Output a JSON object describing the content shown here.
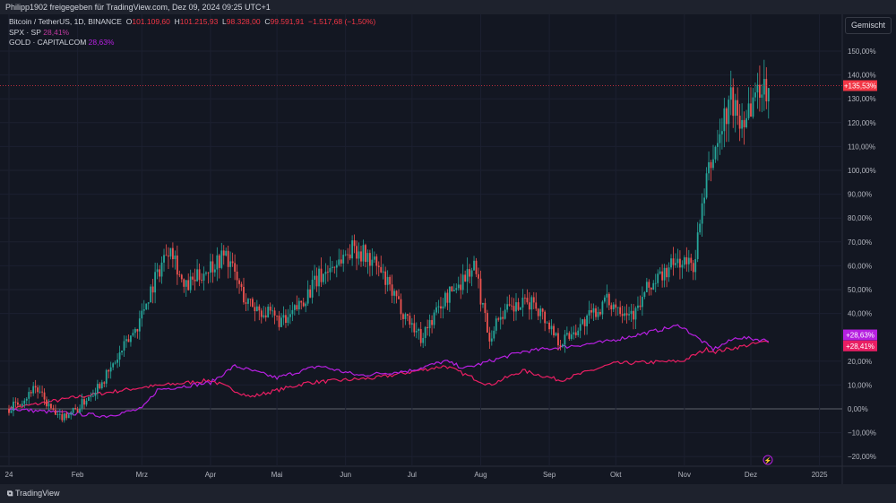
{
  "header": {
    "shared_by": "Philipp1902 freigegeben für TradingView.com, Dez 09, 2024 09:25 UTC+1"
  },
  "legend": {
    "main_symbol": "Bitcoin / TetherUS, 1D, BINANCE",
    "open_label": "O",
    "open": "101.109,60",
    "high_label": "H",
    "high": "101.215,93",
    "low_label": "L",
    "low": "98.328,00",
    "close_label": "C",
    "close": "99.591,91",
    "change": "−1.517,68 (−1,50%)",
    "spx_name": "SPX · SP",
    "spx_value": "28,41%",
    "gold_name": "GOLD · CAPITALCOM",
    "gold_value": "28,63%"
  },
  "scale_mode": "Gemischt",
  "footer": {
    "brand": "TradingView"
  },
  "colors": {
    "up": "#26a69a",
    "down": "#ef5350",
    "spx": "#e91e63",
    "gold": "#b620e0",
    "btc_label": "#f23645"
  },
  "chart_data": {
    "type": "line",
    "yaxis_ticks": [
      "150,00%",
      "140,00%",
      "130,00%",
      "120,00%",
      "110,00%",
      "100,00%",
      "90,00%",
      "80,00%",
      "70,00%",
      "60,00%",
      "50,00%",
      "40,00%",
      "20,00%",
      "10,00%",
      "0,00%",
      "−10,00%",
      "−20,00%"
    ],
    "ytick_values": [
      150,
      140,
      130,
      120,
      110,
      100,
      90,
      80,
      70,
      60,
      50,
      40,
      20,
      10,
      0,
      -10,
      -20
    ],
    "ylim": [
      -24,
      158
    ],
    "xaxis_ticks": [
      "24",
      "Feb",
      "Mrz",
      "Apr",
      "Mai",
      "Jun",
      "Jul",
      "Aug",
      "Sep",
      "Okt",
      "Nov",
      "Dez",
      "2025"
    ],
    "xtick_days": [
      0,
      31,
      60,
      91,
      121,
      152,
      182,
      213,
      244,
      274,
      305,
      335,
      366
    ],
    "xlim_days": [
      -1,
      380
    ],
    "series": [
      {
        "name": "BTCUSDT",
        "kind": "candles",
        "last_label": "+135,53%",
        "anchors": [
          [
            0,
            0
          ],
          [
            9,
            6
          ],
          [
            11,
            10
          ],
          [
            22,
            -4
          ],
          [
            31,
            0
          ],
          [
            45,
            15
          ],
          [
            58,
            35
          ],
          [
            64,
            50
          ],
          [
            73,
            70
          ],
          [
            79,
            50
          ],
          [
            91,
            60
          ],
          [
            98,
            65
          ],
          [
            107,
            45
          ],
          [
            120,
            38
          ],
          [
            125,
            36
          ],
          [
            140,
            55
          ],
          [
            156,
            68
          ],
          [
            166,
            60
          ],
          [
            175,
            45
          ],
          [
            186,
            30
          ],
          [
            196,
            45
          ],
          [
            210,
            60
          ],
          [
            217,
            30
          ],
          [
            222,
            40
          ],
          [
            237,
            45
          ],
          [
            249,
            28
          ],
          [
            258,
            35
          ],
          [
            270,
            45
          ],
          [
            283,
            40
          ],
          [
            288,
            50
          ],
          [
            302,
            62
          ],
          [
            309,
            60
          ],
          [
            316,
            100
          ],
          [
            326,
            130
          ],
          [
            330,
            120
          ],
          [
            339,
            135
          ],
          [
            343,
            135
          ]
        ]
      },
      {
        "name": "SPX",
        "kind": "line",
        "last_label": "+28,41%",
        "anchors": [
          [
            0,
            0
          ],
          [
            31,
            5
          ],
          [
            60,
            9
          ],
          [
            91,
            12
          ],
          [
            109,
            5
          ],
          [
            135,
            11
          ],
          [
            166,
            13
          ],
          [
            197,
            18
          ],
          [
            217,
            10
          ],
          [
            232,
            16
          ],
          [
            249,
            12
          ],
          [
            273,
            19
          ],
          [
            304,
            20
          ],
          [
            315,
            25
          ],
          [
            319,
            24
          ],
          [
            343,
            28.41
          ]
        ]
      },
      {
        "name": "GOLD",
        "kind": "line",
        "last_label": "+28,63%",
        "anchors": [
          [
            0,
            0
          ],
          [
            44,
            -3
          ],
          [
            60,
            0
          ],
          [
            67,
            8
          ],
          [
            91,
            11
          ],
          [
            102,
            18
          ],
          [
            121,
            13
          ],
          [
            140,
            18
          ],
          [
            158,
            14
          ],
          [
            181,
            16
          ],
          [
            197,
            20
          ],
          [
            206,
            17
          ],
          [
            232,
            24
          ],
          [
            269,
            28
          ],
          [
            303,
            35
          ],
          [
            318,
            25
          ],
          [
            329,
            30
          ],
          [
            343,
            28.63
          ]
        ]
      }
    ]
  }
}
